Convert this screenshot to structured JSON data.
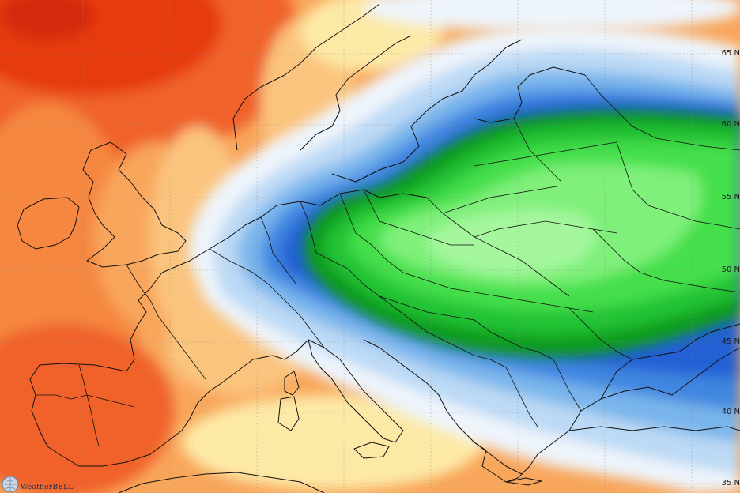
{
  "map": {
    "region": "Europe",
    "latitude_labels": [
      "65 N",
      "60 N",
      "55 N",
      "50 N",
      "45 N",
      "40 N",
      "35 N"
    ],
    "logo_text": "WeatherBELL"
  },
  "colors": {
    "deep_red": "#e63a10",
    "red_orange": "#f0622a",
    "orange": "#f5873f",
    "light_orange": "#f8a65b",
    "peach": "#fbc47e",
    "pale_yellow": "#fde9a6",
    "white_blue": "#eef4fb",
    "pale_blue": "#bcd9f5",
    "light_blue": "#79b5ec",
    "mid_blue": "#3f86e0",
    "blue": "#2460d4",
    "deep_blue": "#1a47c1",
    "dark_green": "#0d9c1d",
    "green": "#24c236",
    "bright_green": "#44df4c",
    "light_green": "#7ff07a",
    "pale_green": "#a5f79e",
    "coastline": "#111111"
  }
}
